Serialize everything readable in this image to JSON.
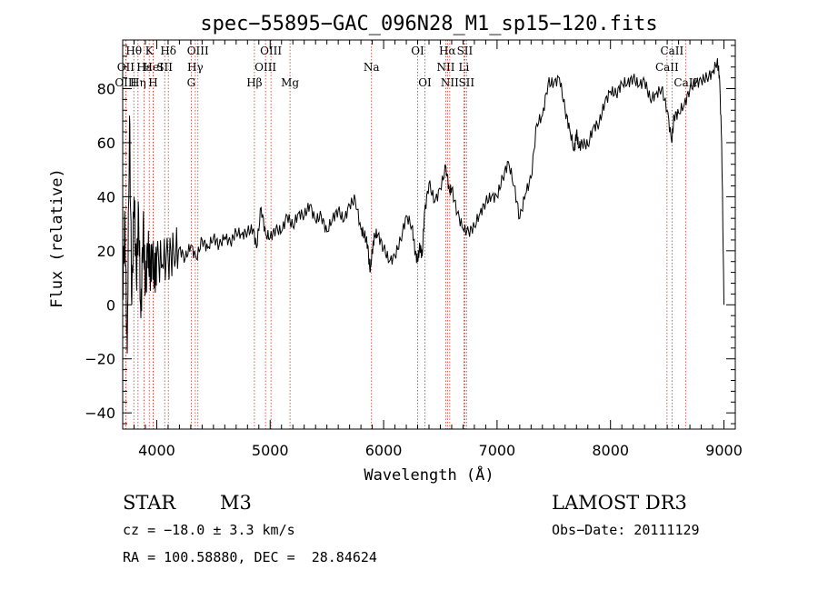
{
  "chart_data": {
    "type": "line",
    "title": "spec−55895−GAC_096N28_M1_sp15−120.fits",
    "xlabel": "Wavelength (Å)",
    "ylabel": "Flux (relative)",
    "xlim": [
      3700,
      9100
    ],
    "ylim": [
      -46,
      98
    ],
    "x_ticks": [
      4000,
      5000,
      6000,
      7000,
      8000,
      9000
    ],
    "y_ticks": [
      -40,
      -20,
      0,
      20,
      40,
      60,
      80
    ],
    "series": [
      {
        "name": "flux",
        "x": [
          3700,
          3720,
          3740,
          3760,
          3780,
          3800,
          3820,
          3840,
          3860,
          3880,
          3900,
          3920,
          3940,
          3960,
          3980,
          4000,
          4050,
          4100,
          4150,
          4200,
          4250,
          4300,
          4350,
          4400,
          4450,
          4500,
          4550,
          4600,
          4650,
          4700,
          4750,
          4800,
          4850,
          4880,
          4920,
          4960,
          5000,
          5050,
          5100,
          5150,
          5200,
          5250,
          5300,
          5350,
          5400,
          5450,
          5500,
          5550,
          5600,
          5650,
          5700,
          5750,
          5800,
          5830,
          5860,
          5880,
          5900,
          5920,
          5950,
          6000,
          6050,
          6100,
          6150,
          6200,
          6250,
          6280,
          6300,
          6320,
          6340,
          6360,
          6400,
          6450,
          6500,
          6550,
          6580,
          6600,
          6650,
          6700,
          6750,
          6800,
          6850,
          6900,
          6950,
          7000,
          7050,
          7100,
          7150,
          7200,
          7250,
          7300,
          7350,
          7400,
          7450,
          7500,
          7550,
          7600,
          7640,
          7680,
          7700,
          7720,
          7750,
          7800,
          7850,
          7900,
          7950,
          8000,
          8050,
          8100,
          8150,
          8200,
          8250,
          8300,
          8350,
          8400,
          8450,
          8500,
          8540,
          8560,
          8600,
          8650,
          8700,
          8750,
          8800,
          8850,
          8900,
          8940,
          8960,
          8980,
          9000
        ],
        "values": [
          5,
          30,
          -18,
          70,
          0,
          40,
          10,
          35,
          -5,
          30,
          5,
          22,
          12,
          20,
          10,
          17,
          15,
          18,
          19,
          21,
          17,
          22,
          17,
          24,
          21,
          25,
          22,
          25,
          23,
          27,
          26,
          27,
          28,
          21,
          36,
          26,
          25,
          28,
          27,
          33,
          29,
          34,
          33,
          37,
          31,
          33,
          27,
          32,
          35,
          31,
          37,
          39,
          28,
          26,
          22,
          12,
          20,
          26,
          26,
          21,
          16,
          18,
          24,
          33,
          29,
          19,
          16,
          22,
          18,
          34,
          45,
          38,
          43,
          51,
          42,
          43,
          34,
          28,
          27,
          29,
          34,
          38,
          40,
          40,
          47,
          53,
          44,
          32,
          41,
          47,
          67,
          70,
          82,
          82,
          84,
          72,
          65,
          57,
          64,
          58,
          60,
          59,
          66,
          67,
          75,
          79,
          78,
          82,
          82,
          84,
          81,
          83,
          76,
          78,
          80,
          72,
          60,
          70,
          71,
          74,
          80,
          82,
          83,
          84,
          86,
          90,
          85,
          60,
          0
        ]
      }
    ],
    "line_labels": [
      {
        "text": "Hθ",
        "wl": 3798,
        "row": 0
      },
      {
        "text": "K",
        "wl": 3934,
        "row": 0
      },
      {
        "text": "Hδ",
        "wl": 4102,
        "row": 0
      },
      {
        "text": "OIII",
        "wl": 4363,
        "row": 0
      },
      {
        "text": "OIII",
        "wl": 5007,
        "row": 0
      },
      {
        "text": "OI",
        "wl": 6300,
        "row": 0
      },
      {
        "text": "Hα",
        "wl": 6563,
        "row": 0
      },
      {
        "text": "SII",
        "wl": 6716,
        "row": 0
      },
      {
        "text": "CaII",
        "wl": 8542,
        "row": 0
      },
      {
        "text": "OII",
        "wl": 3727,
        "row": 1
      },
      {
        "text": "Hε",
        "wl": 3889,
        "row": 1
      },
      {
        "text": "HeI",
        "wl": 3970,
        "row": 1
      },
      {
        "text": "SII",
        "wl": 4070,
        "row": 1
      },
      {
        "text": "Hγ",
        "wl": 4340,
        "row": 1
      },
      {
        "text": "OIII",
        "wl": 4959,
        "row": 1
      },
      {
        "text": "Na",
        "wl": 5893,
        "row": 1
      },
      {
        "text": "NII",
        "wl": 6548,
        "row": 1
      },
      {
        "text": "Li",
        "wl": 6708,
        "row": 1
      },
      {
        "text": "CaII",
        "wl": 8498,
        "row": 1
      },
      {
        "text": "OIII",
        "wl": 3727,
        "row": 2
      },
      {
        "text": "Hη",
        "wl": 3835,
        "row": 2
      },
      {
        "text": "H",
        "wl": 3968,
        "row": 2
      },
      {
        "text": "G",
        "wl": 4304,
        "row": 2
      },
      {
        "text": "Hβ",
        "wl": 4861,
        "row": 2
      },
      {
        "text": "Mg",
        "wl": 5175,
        "row": 2
      },
      {
        "text": "OI",
        "wl": 6364,
        "row": 2
      },
      {
        "text": "NII",
        "wl": 6583,
        "row": 2
      },
      {
        "text": "SII",
        "wl": 6731,
        "row": 2
      },
      {
        "text": "CaII",
        "wl": 8662,
        "row": 2
      }
    ]
  },
  "info": {
    "object_type": "STAR",
    "subclass": "M3",
    "survey": "LAMOST DR3",
    "redshift": "cz = −18.0 ± 3.3 km/s",
    "obs_date": "Obs−Date: 20111129",
    "coordinates": "RA = 100.58880, DEC =  28.84624"
  },
  "colors": {
    "axes": "#000000",
    "spectrum": "#000000",
    "marker_lines": "#c0392b"
  }
}
